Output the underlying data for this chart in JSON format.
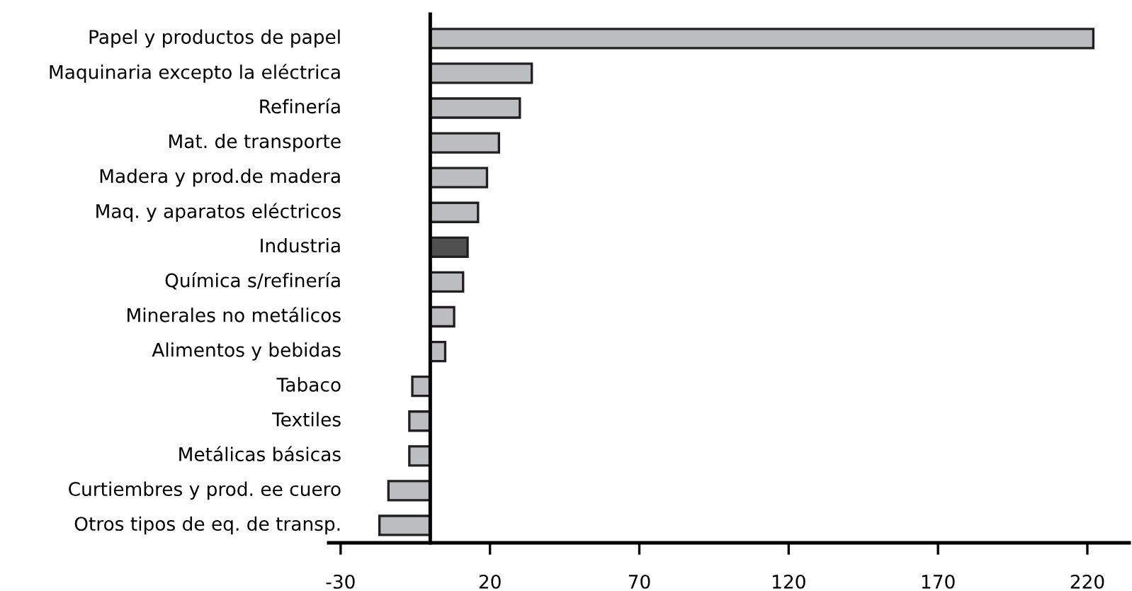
{
  "chart_data": {
    "type": "bar",
    "orientation": "horizontal",
    "categories": [
      "Papel y productos de papel",
      "Maquinaria excepto la eléctrica",
      "Refinería",
      "Mat. de transporte",
      "Madera y prod.de madera",
      "Maq. y aparatos eléctricos",
      "Industria",
      "Química s/refinería",
      "Minerales no metálicos",
      "Alimentos y bebidas",
      "Tabaco",
      "Textiles",
      "Metálicas básicas",
      "Curtiembres y prod. ee cuero",
      "Otros tipos de eq. de transp."
    ],
    "values": [
      222,
      34,
      30,
      23,
      19,
      16,
      12.5,
      11,
      8,
      5,
      -6,
      -7,
      -7,
      -14,
      -17
    ],
    "colors": [
      "#bcbdc1",
      "#bcbdc1",
      "#bcbdc1",
      "#bcbdc1",
      "#bcbdc1",
      "#bcbdc1",
      "#505050",
      "#bcbdc1",
      "#bcbdc1",
      "#bcbdc1",
      "#bcbdc1",
      "#bcbdc1",
      "#bcbdc1",
      "#bcbdc1",
      "#bcbdc1"
    ],
    "xlim": [
      -34,
      234
    ],
    "xticks": [
      -30,
      20,
      70,
      120,
      170,
      220
    ],
    "grid": false,
    "legend": false
  }
}
